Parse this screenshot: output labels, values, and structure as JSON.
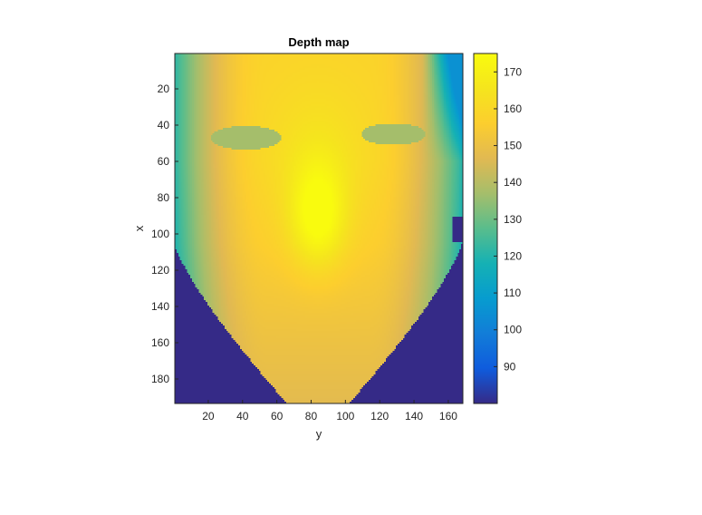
{
  "chart_data": {
    "type": "heatmap",
    "title": "Depth map",
    "xlabel": "y",
    "ylabel": "x",
    "x_range": [
      1,
      168
    ],
    "y_range": [
      1,
      193
    ],
    "y_reversed": true,
    "x_ticks": [
      20,
      40,
      60,
      80,
      100,
      120,
      140,
      160
    ],
    "y_ticks": [
      20,
      40,
      60,
      80,
      100,
      120,
      140,
      160,
      180
    ],
    "colorbar": {
      "colormap": "parula",
      "range": [
        80,
        175
      ],
      "ticks": [
        90,
        100,
        110,
        120,
        130,
        140,
        150,
        160,
        170
      ]
    },
    "grid": false,
    "regions": {
      "background_value": 80,
      "forehead_value": 158,
      "nose_tip_value": 175,
      "eye_value": 137,
      "cheek_edge_value": 120
    },
    "colors": {
      "low": "#352a87",
      "high": "#f9fb0e"
    }
  }
}
